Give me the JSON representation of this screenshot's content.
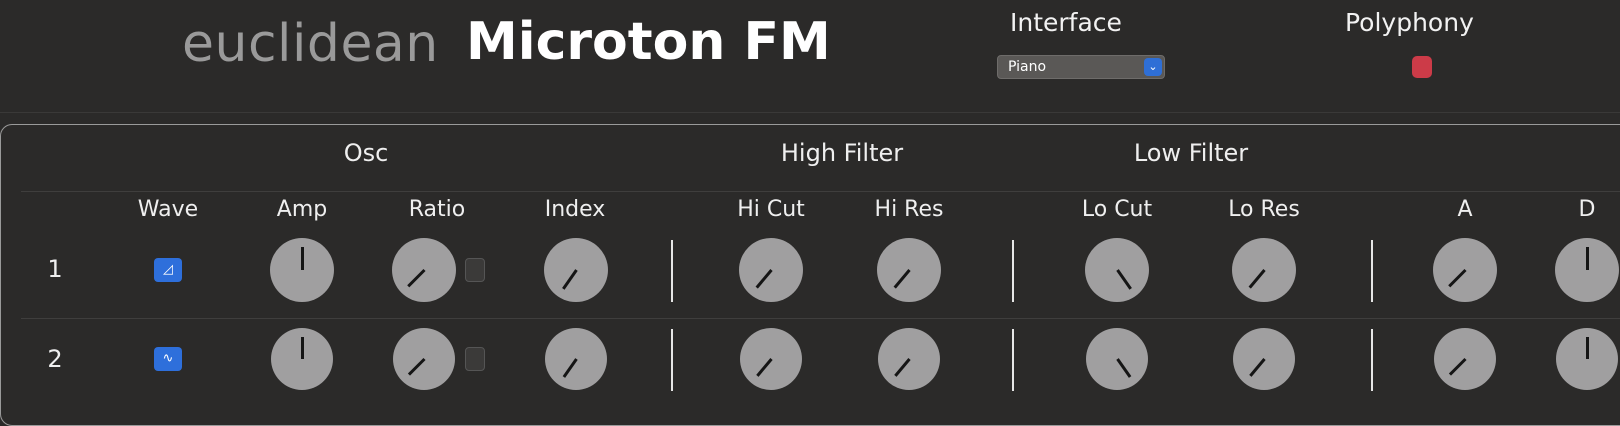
{
  "header": {
    "brand_sub": "euclidean",
    "brand_main": "Microton FM",
    "interface_label": "Interface",
    "interface_value": "Piano",
    "polyphony_label": "Polyphony"
  },
  "groups": {
    "osc": "Osc",
    "high_filter": "High Filter",
    "low_filter": "Low Filter"
  },
  "columns": {
    "wave": "Wave",
    "amp": "Amp",
    "ratio": "Ratio",
    "index": "Index",
    "hi_cut": "Hi Cut",
    "hi_res": "Hi Res",
    "lo_cut": "Lo Cut",
    "lo_res": "Lo Res",
    "a": "A",
    "d": "D"
  },
  "rows": [
    {
      "num": "1",
      "wave_glyph": "◿",
      "knobs": {
        "amp": 180,
        "ratio": 45,
        "index": 35,
        "hi_cut": 40,
        "hi_res": 40,
        "lo_cut": -35,
        "lo_res": 40,
        "a": 45,
        "d": 180
      }
    },
    {
      "num": "2",
      "wave_glyph": "∿",
      "knobs": {
        "amp": 180,
        "ratio": 45,
        "index": 35,
        "hi_cut": 40,
        "hi_res": 40,
        "lo_cut": -35,
        "lo_res": 40,
        "a": 45,
        "d": 180
      }
    }
  ],
  "colors": {
    "accent": "#2e6fdb",
    "toggle_on": "#cc3b48",
    "knob": "#a09fa0"
  },
  "icons": {
    "select_chevron": "chevron-down-icon",
    "wave1": "sawtooth-wave-icon",
    "wave2": "sine-wave-icon"
  }
}
